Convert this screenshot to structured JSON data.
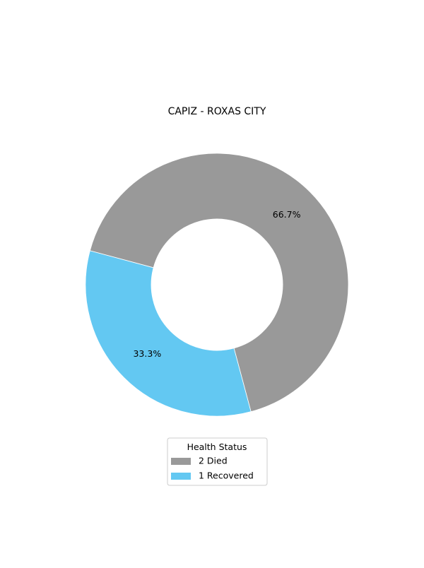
{
  "chart_data": {
    "type": "pie",
    "title": "CAPIZ - ROXAS CITY",
    "donut": true,
    "slices": [
      {
        "count": "2",
        "label": "Died",
        "value": 2,
        "percent_label": "66.7%",
        "color": "#999999"
      },
      {
        "count": "1",
        "label": "Recovered",
        "value": 1,
        "percent_label": "33.3%",
        "color": "#63c8f2"
      }
    ],
    "start_angle_deg": -165,
    "direction": "clockwise",
    "legend": {
      "title": "Health Status",
      "placement": "bottom-center"
    }
  }
}
